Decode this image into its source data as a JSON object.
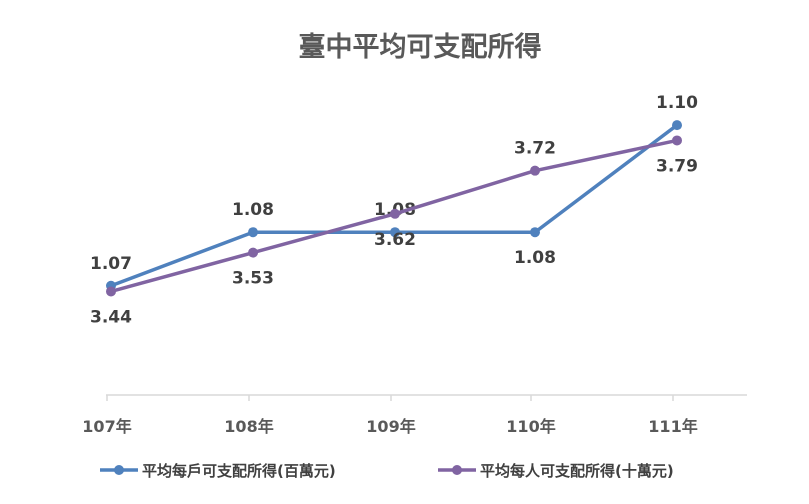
{
  "chart_data": {
    "type": "line",
    "title": "臺中平均可支配所得",
    "categories": [
      "107年",
      "108年",
      "109年",
      "110年",
      "111年"
    ],
    "grid": false,
    "legend_position": "bottom",
    "series": [
      {
        "name": "平均每戶可支配所得(百萬元)",
        "values": [
          1.07,
          1.08,
          1.08,
          1.08,
          1.1
        ],
        "labels": [
          "1.07",
          "1.08",
          "1.08",
          "1.08",
          "1.10"
        ],
        "color": "#4f81bd",
        "label_position": [
          "above",
          "above",
          "above",
          "below",
          "above"
        ]
      },
      {
        "name": "平均每人可支配所得(十萬元)",
        "values": [
          3.44,
          3.53,
          3.62,
          3.72,
          3.79
        ],
        "labels": [
          "3.44",
          "3.53",
          "3.62",
          "3.72",
          "3.79"
        ],
        "color": "#8064a2",
        "label_position": [
          "below",
          "below",
          "below",
          "above",
          "below"
        ]
      }
    ]
  }
}
